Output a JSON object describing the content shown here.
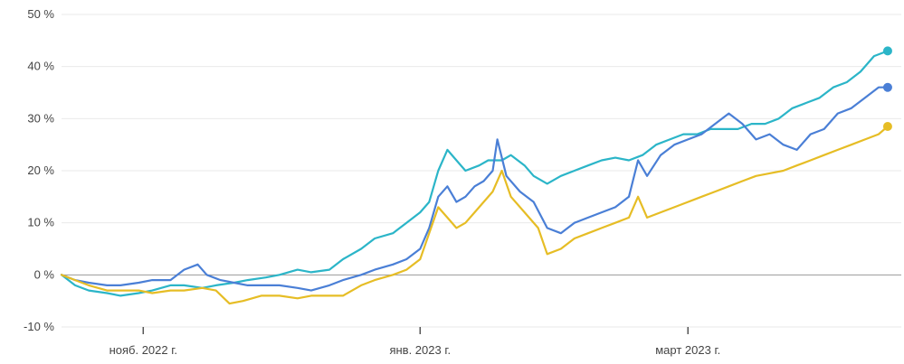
{
  "chart_data": {
    "type": "line",
    "title": "",
    "xlabel": "",
    "ylabel": "",
    "y_unit": "%",
    "ylim": [
      -10,
      50
    ],
    "yticks": [
      50,
      40,
      30,
      20,
      10,
      0,
      -10
    ],
    "ytick_labels": [
      "50 %",
      "40 %",
      "30 %",
      "20 %",
      "10 %",
      "0 %",
      "-10 %"
    ],
    "xlim": [
      "2022-10-14",
      "2023-04-17"
    ],
    "xticks": [
      {
        "date": "2022-11-01",
        "label": "нояб. 2022 г."
      },
      {
        "date": "2023-01-01",
        "label": "янв. 2023 г."
      },
      {
        "date": "2023-03-01",
        "label": "март 2023 г."
      }
    ],
    "grid": true,
    "legend": "none",
    "series": [
      {
        "color": "#2bb5c8",
        "end_marker": true,
        "points": [
          [
            "2022-10-14",
            0
          ],
          [
            "2022-10-17",
            -2
          ],
          [
            "2022-10-20",
            -3
          ],
          [
            "2022-10-24",
            -3.5
          ],
          [
            "2022-10-27",
            -4
          ],
          [
            "2022-10-31",
            -3.5
          ],
          [
            "2022-11-03",
            -3
          ],
          [
            "2022-11-07",
            -2
          ],
          [
            "2022-11-10",
            -2
          ],
          [
            "2022-11-14",
            -2.5
          ],
          [
            "2022-11-17",
            -2
          ],
          [
            "2022-11-21",
            -1.5
          ],
          [
            "2022-11-24",
            -1
          ],
          [
            "2022-11-28",
            -0.5
          ],
          [
            "2022-12-01",
            0
          ],
          [
            "2022-12-05",
            1
          ],
          [
            "2022-12-08",
            0.5
          ],
          [
            "2022-12-12",
            1
          ],
          [
            "2022-12-15",
            3
          ],
          [
            "2022-12-19",
            5
          ],
          [
            "2022-12-22",
            7
          ],
          [
            "2022-12-26",
            8
          ],
          [
            "2022-12-29",
            10
          ],
          [
            "2023-01-01",
            12
          ],
          [
            "2023-01-03",
            14
          ],
          [
            "2023-01-05",
            20
          ],
          [
            "2023-01-07",
            24
          ],
          [
            "2023-01-09",
            22
          ],
          [
            "2023-01-11",
            20
          ],
          [
            "2023-01-14",
            21
          ],
          [
            "2023-01-16",
            22
          ],
          [
            "2023-01-19",
            22
          ],
          [
            "2023-01-21",
            23
          ],
          [
            "2023-01-24",
            21
          ],
          [
            "2023-01-26",
            19
          ],
          [
            "2023-01-29",
            17.5
          ],
          [
            "2023-02-01",
            19
          ],
          [
            "2023-02-04",
            20
          ],
          [
            "2023-02-07",
            21
          ],
          [
            "2023-02-10",
            22
          ],
          [
            "2023-02-13",
            22.5
          ],
          [
            "2023-02-16",
            22
          ],
          [
            "2023-02-19",
            23
          ],
          [
            "2023-02-22",
            25
          ],
          [
            "2023-02-25",
            26
          ],
          [
            "2023-02-28",
            27
          ],
          [
            "2023-03-03",
            27
          ],
          [
            "2023-03-06",
            28
          ],
          [
            "2023-03-09",
            28
          ],
          [
            "2023-03-12",
            28
          ],
          [
            "2023-03-15",
            29
          ],
          [
            "2023-03-18",
            29
          ],
          [
            "2023-03-21",
            30
          ],
          [
            "2023-03-24",
            32
          ],
          [
            "2023-03-27",
            33
          ],
          [
            "2023-03-30",
            34
          ],
          [
            "2023-04-02",
            36
          ],
          [
            "2023-04-05",
            37
          ],
          [
            "2023-04-08",
            39
          ],
          [
            "2023-04-11",
            42
          ],
          [
            "2023-04-14",
            43
          ]
        ]
      },
      {
        "color": "#4a7fd6",
        "end_marker": true,
        "points": [
          [
            "2022-10-14",
            0
          ],
          [
            "2022-10-17",
            -1
          ],
          [
            "2022-10-20",
            -1.5
          ],
          [
            "2022-10-24",
            -2
          ],
          [
            "2022-10-27",
            -2
          ],
          [
            "2022-10-31",
            -1.5
          ],
          [
            "2022-11-03",
            -1
          ],
          [
            "2022-11-07",
            -1
          ],
          [
            "2022-11-10",
            1
          ],
          [
            "2022-11-13",
            2
          ],
          [
            "2022-11-15",
            0
          ],
          [
            "2022-11-18",
            -1
          ],
          [
            "2022-11-21",
            -1.5
          ],
          [
            "2022-11-24",
            -2
          ],
          [
            "2022-11-28",
            -2
          ],
          [
            "2022-12-01",
            -2
          ],
          [
            "2022-12-05",
            -2.5
          ],
          [
            "2022-12-08",
            -3
          ],
          [
            "2022-12-12",
            -2
          ],
          [
            "2022-12-15",
            -1
          ],
          [
            "2022-12-19",
            0
          ],
          [
            "2022-12-22",
            1
          ],
          [
            "2022-12-26",
            2
          ],
          [
            "2022-12-29",
            3
          ],
          [
            "2023-01-01",
            5
          ],
          [
            "2023-01-03",
            9
          ],
          [
            "2023-01-05",
            15
          ],
          [
            "2023-01-07",
            17
          ],
          [
            "2023-01-09",
            14
          ],
          [
            "2023-01-11",
            15
          ],
          [
            "2023-01-13",
            17
          ],
          [
            "2023-01-15",
            18
          ],
          [
            "2023-01-17",
            20
          ],
          [
            "2023-01-18",
            26
          ],
          [
            "2023-01-20",
            19
          ],
          [
            "2023-01-23",
            16
          ],
          [
            "2023-01-26",
            14
          ],
          [
            "2023-01-29",
            9
          ],
          [
            "2023-02-01",
            8
          ],
          [
            "2023-02-04",
            10
          ],
          [
            "2023-02-07",
            11
          ],
          [
            "2023-02-10",
            12
          ],
          [
            "2023-02-13",
            13
          ],
          [
            "2023-02-16",
            15
          ],
          [
            "2023-02-18",
            22
          ],
          [
            "2023-02-20",
            19
          ],
          [
            "2023-02-23",
            23
          ],
          [
            "2023-02-26",
            25
          ],
          [
            "2023-03-01",
            26
          ],
          [
            "2023-03-04",
            27
          ],
          [
            "2023-03-07",
            29
          ],
          [
            "2023-03-10",
            31
          ],
          [
            "2023-03-13",
            29
          ],
          [
            "2023-03-16",
            26
          ],
          [
            "2023-03-19",
            27
          ],
          [
            "2023-03-22",
            25
          ],
          [
            "2023-03-25",
            24
          ],
          [
            "2023-03-28",
            27
          ],
          [
            "2023-03-31",
            28
          ],
          [
            "2023-04-03",
            31
          ],
          [
            "2023-04-06",
            32
          ],
          [
            "2023-04-09",
            34
          ],
          [
            "2023-04-12",
            36
          ],
          [
            "2023-04-14",
            36
          ]
        ]
      },
      {
        "color": "#e6bd25",
        "end_marker": true,
        "points": [
          [
            "2022-10-14",
            0
          ],
          [
            "2022-10-17",
            -1
          ],
          [
            "2022-10-20",
            -2
          ],
          [
            "2022-10-24",
            -3
          ],
          [
            "2022-10-27",
            -3
          ],
          [
            "2022-10-31",
            -3
          ],
          [
            "2022-11-03",
            -3.5
          ],
          [
            "2022-11-07",
            -3
          ],
          [
            "2022-11-10",
            -3
          ],
          [
            "2022-11-14",
            -2.5
          ],
          [
            "2022-11-17",
            -3
          ],
          [
            "2022-11-20",
            -5.5
          ],
          [
            "2022-11-23",
            -5
          ],
          [
            "2022-11-27",
            -4
          ],
          [
            "2022-12-01",
            -4
          ],
          [
            "2022-12-05",
            -4.5
          ],
          [
            "2022-12-08",
            -4
          ],
          [
            "2022-12-12",
            -4
          ],
          [
            "2022-12-15",
            -4
          ],
          [
            "2022-12-19",
            -2
          ],
          [
            "2022-12-22",
            -1
          ],
          [
            "2022-12-26",
            0
          ],
          [
            "2022-12-29",
            1
          ],
          [
            "2023-01-01",
            3
          ],
          [
            "2023-01-03",
            8
          ],
          [
            "2023-01-05",
            13
          ],
          [
            "2023-01-07",
            11
          ],
          [
            "2023-01-09",
            9
          ],
          [
            "2023-01-11",
            10
          ],
          [
            "2023-01-13",
            12
          ],
          [
            "2023-01-15",
            14
          ],
          [
            "2023-01-17",
            16
          ],
          [
            "2023-01-19",
            20
          ],
          [
            "2023-01-21",
            15
          ],
          [
            "2023-01-24",
            12
          ],
          [
            "2023-01-27",
            9
          ],
          [
            "2023-01-29",
            4
          ],
          [
            "2023-02-01",
            5
          ],
          [
            "2023-02-04",
            7
          ],
          [
            "2023-02-07",
            8
          ],
          [
            "2023-02-10",
            9
          ],
          [
            "2023-02-13",
            10
          ],
          [
            "2023-02-16",
            11
          ],
          [
            "2023-02-18",
            15
          ],
          [
            "2023-02-20",
            11
          ],
          [
            "2023-02-23",
            12
          ],
          [
            "2023-02-26",
            13
          ],
          [
            "2023-03-01",
            14
          ],
          [
            "2023-03-04",
            15
          ],
          [
            "2023-03-07",
            16
          ],
          [
            "2023-03-10",
            17
          ],
          [
            "2023-03-13",
            18
          ],
          [
            "2023-03-16",
            19
          ],
          [
            "2023-03-19",
            19.5
          ],
          [
            "2023-03-22",
            20
          ],
          [
            "2023-03-25",
            21
          ],
          [
            "2023-03-28",
            22
          ],
          [
            "2023-03-31",
            23
          ],
          [
            "2023-04-03",
            24
          ],
          [
            "2023-04-06",
            25
          ],
          [
            "2023-04-09",
            26
          ],
          [
            "2023-04-12",
            27
          ],
          [
            "2023-04-14",
            28.5
          ]
        ]
      }
    ]
  }
}
